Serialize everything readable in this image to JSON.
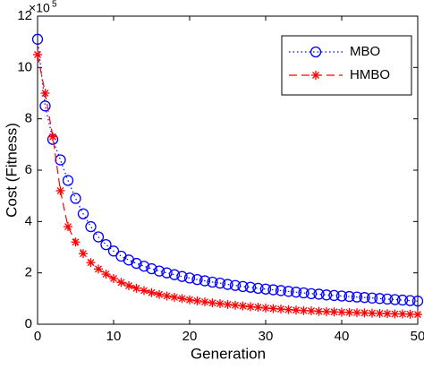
{
  "chart_data": {
    "type": "line",
    "x_label": "Generation",
    "y_label": "Cost (Fitness)",
    "y_multiplier_base": "×10",
    "y_multiplier_exponent": "5",
    "x": [
      0,
      1,
      2,
      3,
      4,
      5,
      6,
      7,
      8,
      9,
      10,
      11,
      12,
      13,
      14,
      15,
      16,
      17,
      18,
      19,
      20,
      21,
      22,
      23,
      24,
      25,
      26,
      27,
      28,
      29,
      30,
      31,
      32,
      33,
      34,
      35,
      36,
      37,
      38,
      39,
      40,
      41,
      42,
      43,
      44,
      45,
      46,
      47,
      48,
      49,
      50
    ],
    "series": [
      {
        "name": "MBO",
        "color": "#0000ff",
        "line_style": "dotted",
        "marker": "circle",
        "values": [
          11.1,
          8.5,
          7.2,
          6.4,
          5.6,
          4.9,
          4.3,
          3.8,
          3.4,
          3.1,
          2.85,
          2.65,
          2.5,
          2.37,
          2.26,
          2.16,
          2.07,
          2.0,
          1.93,
          1.86,
          1.8,
          1.74,
          1.69,
          1.64,
          1.6,
          1.55,
          1.51,
          1.47,
          1.44,
          1.4,
          1.37,
          1.34,
          1.31,
          1.28,
          1.25,
          1.22,
          1.19,
          1.17,
          1.14,
          1.12,
          1.1,
          1.08,
          1.06,
          1.04,
          1.02,
          1.0,
          0.98,
          0.96,
          0.94,
          0.92,
          0.9
        ]
      },
      {
        "name": "HMBO",
        "color": "#ff0000",
        "line_style": "dashed",
        "marker": "asterisk",
        "values": [
          10.5,
          9.0,
          7.3,
          5.2,
          3.8,
          3.2,
          2.75,
          2.4,
          2.15,
          1.95,
          1.78,
          1.63,
          1.5,
          1.4,
          1.31,
          1.23,
          1.16,
          1.1,
          1.05,
          1.0,
          0.95,
          0.91,
          0.87,
          0.83,
          0.8,
          0.77,
          0.74,
          0.71,
          0.68,
          0.66,
          0.63,
          0.61,
          0.59,
          0.57,
          0.55,
          0.53,
          0.52,
          0.5,
          0.49,
          0.48,
          0.47,
          0.46,
          0.45,
          0.44,
          0.43,
          0.42,
          0.41,
          0.4,
          0.4,
          0.39,
          0.38
        ]
      }
    ],
    "xlim": [
      0,
      50
    ],
    "xticks": [
      0,
      10,
      20,
      30,
      40,
      50
    ],
    "ylim": [
      0,
      12
    ],
    "yticks": [
      0,
      2,
      4,
      6,
      8,
      10,
      12
    ],
    "legend": "upper right"
  }
}
